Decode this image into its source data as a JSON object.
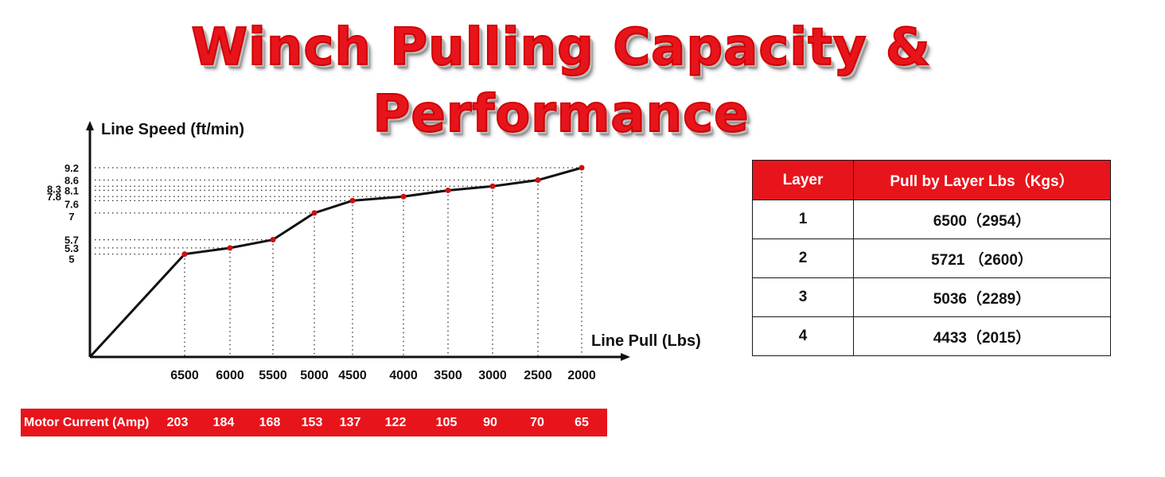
{
  "title": "Winch Pulling Capacity & Performance",
  "chart_data": {
    "type": "line",
    "ylabel": "Line Speed (ft/min)",
    "xlabel": "Line Pull (Lbs)",
    "categories": [
      "6500",
      "6000",
      "5500",
      "5000",
      "4500",
      "4000",
      "3500",
      "3000",
      "2500",
      "2000"
    ],
    "values": [
      5,
      5.3,
      5.7,
      7,
      7.6,
      7.8,
      8.1,
      8.3,
      8.6,
      9.2
    ],
    "y_tick_labels": [
      "9.2",
      "8.6",
      "8.3",
      "8.1",
      "7.8",
      "7.6",
      "7",
      "5.7",
      "5.3",
      "5"
    ],
    "line_starts_at_origin": true,
    "line_color": "#111111",
    "point_color": "#cc1111",
    "guide_lines": "dotted"
  },
  "motor_current": {
    "label": "Motor Current (Amp)",
    "values": [
      "203",
      "184",
      "168",
      "153",
      "137",
      "122",
      "105",
      "90",
      "70",
      "65"
    ],
    "background": "#e8141c"
  },
  "layer_table": {
    "headers": [
      "Layer",
      "Pull by Layer Lbs（Kgs）"
    ],
    "rows": [
      {
        "layer": "1",
        "pull": "6500（2954）"
      },
      {
        "layer": "2",
        "pull": "5721 （2600）"
      },
      {
        "layer": "3",
        "pull": "5036（2289）"
      },
      {
        "layer": "4",
        "pull": "4433（2015）"
      }
    ],
    "header_background": "#e8141c"
  }
}
